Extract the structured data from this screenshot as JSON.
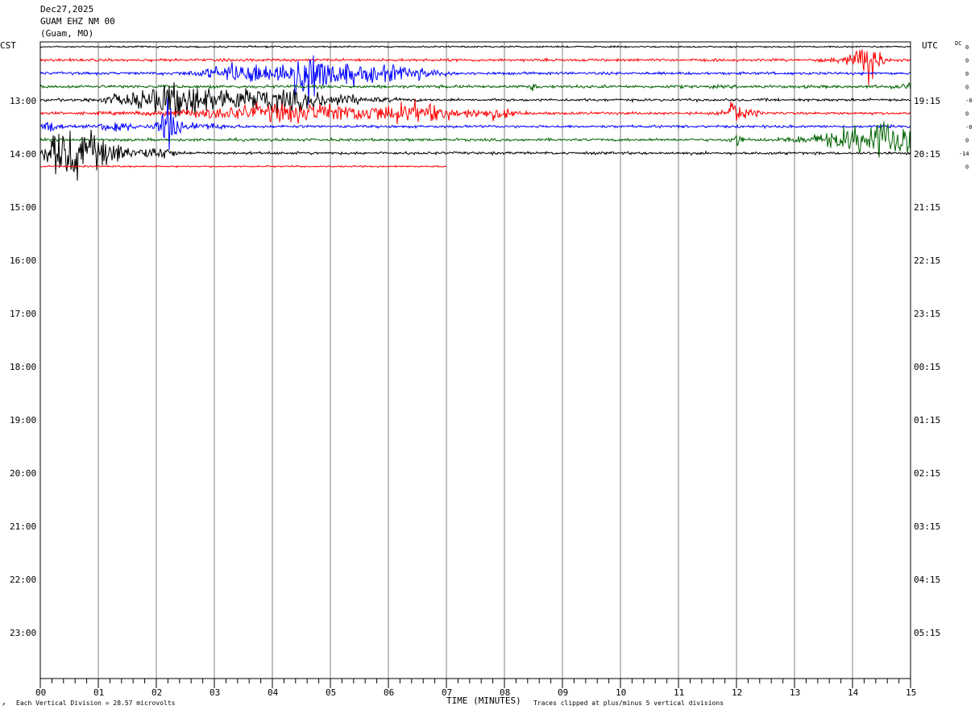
{
  "header": {
    "date": "Dec27,2025",
    "station": "GUAM EHZ NM 00",
    "location": "(Guam, MO)"
  },
  "left_zone_label": "CST",
  "right_zone_label": "UTC",
  "dc_label": "DC",
  "footer": {
    "corner_mark": "↗",
    "vertical_division": "Each Vertical Division =   28.57 microvolts",
    "xlabel": "TIME (MINUTES)",
    "clip_note": "Traces clipped at plus/minus 5 vertical divisions"
  },
  "colors": {
    "black": "#000000",
    "red": "#ff0000",
    "blue": "#0000ff",
    "green": "#006400",
    "grid": "#808080"
  },
  "chart_data": {
    "type": "line",
    "title": "GUAM EHZ NM 00",
    "xlabel": "TIME (MINUTES)",
    "x_ticks": [
      "00",
      "01",
      "02",
      "03",
      "04",
      "05",
      "06",
      "07",
      "08",
      "09",
      "10",
      "11",
      "12",
      "13",
      "14",
      "15"
    ],
    "xlim": [
      0,
      15
    ],
    "left_time_labels": [
      "13:00",
      "14:00",
      "15:00",
      "16:00",
      "17:00",
      "18:00",
      "19:00",
      "20:00",
      "21:00",
      "22:00",
      "23:00"
    ],
    "right_time_labels": [
      "19:15",
      "20:15",
      "21:15",
      "22:15",
      "23:15",
      "00:15",
      "01:15",
      "02:15",
      "03:15",
      "04:15",
      "05:15"
    ],
    "dc_offsets": [
      "0",
      "0",
      "0",
      "0",
      "-0",
      "0",
      "-0",
      "0",
      "-14",
      "0"
    ],
    "trace_colors": [
      "black",
      "red",
      "blue",
      "green",
      "black",
      "red",
      "blue",
      "green",
      "black",
      "red"
    ],
    "traces_count": 10,
    "last_trace_end_minute": 7.0,
    "events": [
      {
        "trace": 1,
        "minute": 14.3,
        "amplitude": 8
      },
      {
        "trace": 4,
        "minute": 2.1,
        "amplitude": 5
      },
      {
        "trace": 5,
        "minute": 11.95,
        "amplitude": 5
      },
      {
        "trace": 6,
        "minute": 2.2,
        "amplitude": 5
      },
      {
        "trace": 7,
        "minute": 14.6,
        "amplitude": 5
      }
    ]
  }
}
